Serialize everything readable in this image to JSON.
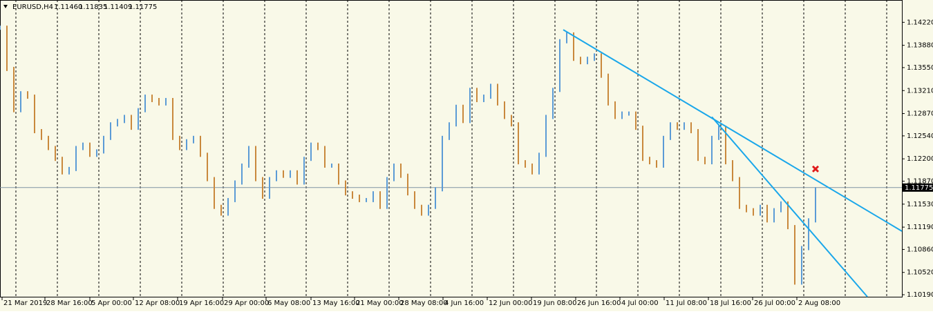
{
  "chart_data": {
    "type": "price-bars",
    "symbol": "EURUSD,H4",
    "quote": [
      "1.11460",
      "1.11835",
      "1.11409",
      "1.11775"
    ],
    "up_color": "#5b9bd6",
    "down_color": "#c9883c",
    "line_color": "#1aa7ea",
    "background": "#f9f9e8",
    "values": [
      1.1414,
      1.1353,
      1.1292,
      1.1317,
      1.1312,
      1.1261,
      1.1251,
      1.1236,
      1.122,
      1.12,
      1.1205,
      1.1236,
      1.1241,
      1.1226,
      1.1231,
      1.1251,
      1.1271,
      1.1276,
      1.1282,
      1.1266,
      1.1292,
      1.1312,
      1.1307,
      1.1302,
      1.1307,
      1.1251,
      1.1236,
      1.1246,
      1.1251,
      1.1226,
      1.119,
      1.1149,
      1.1139,
      1.1159,
      1.1185,
      1.121,
      1.1236,
      1.119,
      1.1164,
      1.119,
      1.12,
      1.1195,
      1.12,
      1.1185,
      1.122,
      1.1241,
      1.1236,
      1.121,
      1.121,
      1.1185,
      1.1169,
      1.1164,
      1.1159,
      1.1159,
      1.1169,
      1.1149,
      1.119,
      1.121,
      1.1195,
      1.1169,
      1.1149,
      1.1139,
      1.1149,
      1.1175,
      1.1251,
      1.1271,
      1.1297,
      1.1276,
      1.1322,
      1.1307,
      1.1312,
      1.1328,
      1.1302,
      1.1282,
      1.1271,
      1.1215,
      1.121,
      1.12,
      1.1226,
      1.1282,
      1.1322,
      1.1394,
      1.1404,
      1.1368,
      1.1363,
      1.1368,
      1.1373,
      1.1343,
      1.1302,
      1.1282,
      1.1287,
      1.1287,
      1.1266,
      1.122,
      1.1215,
      1.121,
      1.1251,
      1.1271,
      1.1266,
      1.1271,
      1.1261,
      1.122,
      1.1215,
      1.1251,
      1.1266,
      1.1215,
      1.119,
      1.1149,
      1.1144,
      1.1139,
      1.1149,
      1.1129,
      1.1144,
      1.1154,
      1.1119,
      1.1037,
      1.1088,
      1.1129,
      1.1175
    ],
    "xlim": [
      0,
      130.5
    ],
    "ylim": [
      1.1016,
      1.1455
    ],
    "yticks": [
      {
        "value": 1.1422,
        "label": "1.14220"
      },
      {
        "value": 1.1388,
        "label": "1.13880"
      },
      {
        "value": 1.1355,
        "label": "1.13550"
      },
      {
        "value": 1.1321,
        "label": "1.13210"
      },
      {
        "value": 1.1287,
        "label": "1.12870"
      },
      {
        "value": 1.1254,
        "label": "1.12540"
      },
      {
        "value": 1.122,
        "label": "1.12200"
      },
      {
        "value": 1.1187,
        "label": "1.11870"
      },
      {
        "value": 1.1153,
        "label": "1.11530"
      },
      {
        "value": 1.1119,
        "label": "1.11190"
      },
      {
        "value": 1.1086,
        "label": "1.10860"
      },
      {
        "value": 1.1052,
        "label": "1.10520"
      },
      {
        "value": 1.1019,
        "label": "1.10190"
      }
    ],
    "xticks": [
      {
        "value": 0.3,
        "label": "21 Mar 2019"
      },
      {
        "value": 6.5,
        "label": "28 Mar 16:00"
      },
      {
        "value": 13,
        "label": "5 Apr 00:00"
      },
      {
        "value": 19.3,
        "label": "12 Apr 08:00"
      },
      {
        "value": 25.7,
        "label": "19 Apr 16:00"
      },
      {
        "value": 32.2,
        "label": "29 Apr 00:00"
      },
      {
        "value": 38.5,
        "label": "6 May 08:00"
      },
      {
        "value": 45,
        "label": "13 May 16:00"
      },
      {
        "value": 51.3,
        "label": "21 May 00:00"
      },
      {
        "value": 57.7,
        "label": "28 May 08:00"
      },
      {
        "value": 64.1,
        "label": "4 Jun 16:00"
      },
      {
        "value": 70.5,
        "label": "12 Jun 00:00"
      },
      {
        "value": 76.9,
        "label": "19 Jun 08:00"
      },
      {
        "value": 83.3,
        "label": "26 Jun 16:00"
      },
      {
        "value": 89.7,
        "label": "4 Jul 00:00"
      },
      {
        "value": 96.1,
        "label": "11 Jul 08:00"
      },
      {
        "value": 102.5,
        "label": "18 Jul 16:00"
      },
      {
        "value": 108.9,
        "label": "26 Jul 00:00"
      },
      {
        "value": 115.3,
        "label": "2 Aug 08:00"
      }
    ],
    "current_price": {
      "value": 1.11775,
      "label": "1.11775"
    },
    "trendlines": [
      {
        "x": [
          81.5,
          130.5
        ],
        "y": [
          1.1411,
          1.1113
        ]
      },
      {
        "x": [
          103,
          125.5
        ],
        "y": [
          1.1282,
          1.1016
        ]
      }
    ],
    "marker": {
      "x": 118,
      "y": 1.1205,
      "color": "#e01b1b"
    }
  }
}
